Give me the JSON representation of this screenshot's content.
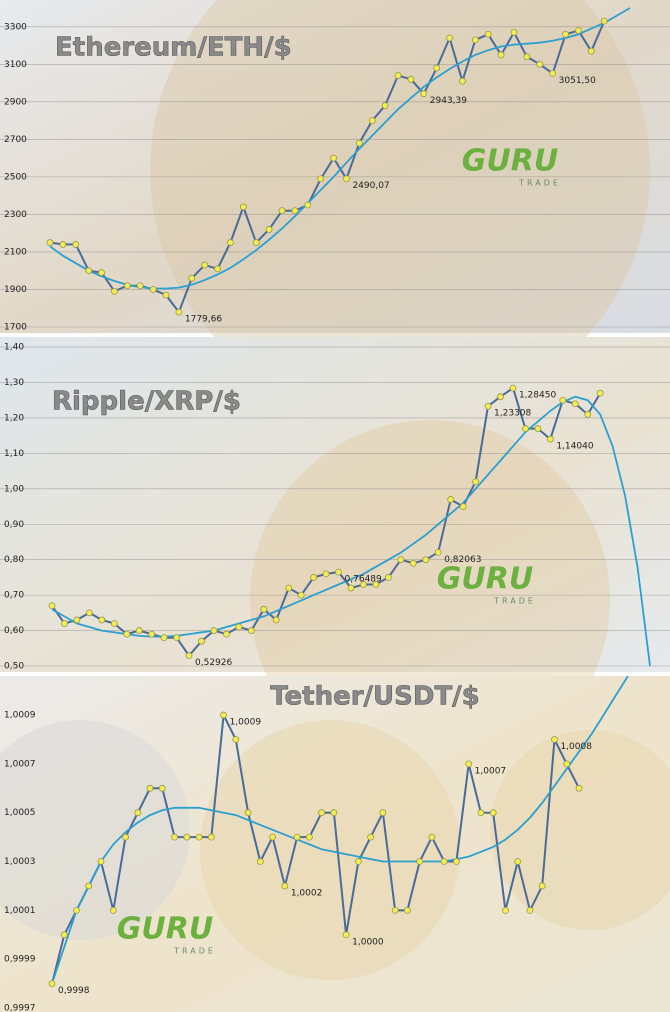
{
  "chart_data": [
    {
      "type": "line",
      "title": "Ethereum/ETH/$",
      "watermark": "GURU",
      "watermark_sub": "TRADE",
      "ylim": [
        1700,
        3400
      ],
      "yticks": [
        1700,
        1900,
        2100,
        2300,
        2500,
        2700,
        2900,
        3100,
        3300
      ],
      "grid": true,
      "series": [
        {
          "color": "#4a6a9a",
          "values": [
            2150,
            2140,
            2140,
            2000,
            1990,
            1890,
            1920,
            1920,
            1900,
            1870,
            1779.66,
            1960,
            2030,
            2010,
            2150,
            2340,
            2150,
            2220,
            2320,
            2320,
            2350,
            2490,
            2600,
            2490.07,
            2680,
            2800,
            2880,
            3040,
            3020,
            2943.39,
            3080,
            3240,
            3010,
            3230,
            3260,
            3150,
            3270,
            3140,
            3100,
            3051.5,
            3260,
            3280,
            3170,
            3330,
            null,
            null
          ],
          "value_labels": [
            null,
            null,
            null,
            null,
            null,
            null,
            null,
            null,
            null,
            null,
            "1779,66",
            null,
            null,
            null,
            null,
            null,
            null,
            null,
            null,
            null,
            null,
            null,
            null,
            "2490,07",
            null,
            null,
            null,
            null,
            null,
            "2943,39",
            null,
            null,
            null,
            null,
            null,
            null,
            null,
            null,
            null,
            "3051,50",
            null,
            null,
            null,
            null,
            null,
            null
          ]
        },
        {
          "color": "#2aa0d0",
          "values": [
            2130,
            2080,
            2040,
            2000,
            1970,
            1945,
            1925,
            1912,
            1905,
            1905,
            1910,
            1925,
            1950,
            1980,
            2015,
            2060,
            2110,
            2165,
            2225,
            2290,
            2360,
            2430,
            2500,
            2575,
            2650,
            2720,
            2790,
            2860,
            2920,
            2980,
            3030,
            3075,
            3115,
            3150,
            3175,
            3195,
            3205,
            3210,
            3215,
            3225,
            3240,
            3260,
            3290,
            3320,
            3360,
            3400
          ]
        }
      ]
    },
    {
      "type": "line",
      "title": "Ripple/XRP/$",
      "watermark": "GURU",
      "watermark_sub": "TRADE",
      "ylim": [
        0.5,
        1.42
      ],
      "yticks": [
        {
          "value": 0.5,
          "label": "0,50"
        },
        {
          "value": 0.6,
          "label": "0,60"
        },
        {
          "value": 0.7,
          "label": "0,70"
        },
        {
          "value": 0.8,
          "label": "0,80"
        },
        {
          "value": 0.9,
          "label": "0,90"
        },
        {
          "value": 1.0,
          "label": "1,00"
        },
        {
          "value": 1.1,
          "label": "1,10"
        },
        {
          "value": 1.2,
          "label": "1,20"
        },
        {
          "value": 1.3,
          "label": "1,30"
        },
        {
          "value": 1.4,
          "label": "1,40"
        }
      ],
      "grid": true,
      "series": [
        {
          "color": "#4a6a9a",
          "values": [
            0.67,
            0.62,
            0.63,
            0.65,
            0.63,
            0.62,
            0.59,
            0.6,
            0.59,
            0.58,
            0.58,
            0.52926,
            0.57,
            0.6,
            0.59,
            0.61,
            0.6,
            0.66,
            0.63,
            0.72,
            0.7,
            0.75,
            0.76,
            0.76489,
            0.72,
            0.73,
            0.73,
            0.75,
            0.8,
            0.79,
            0.8,
            0.82063,
            0.97,
            0.95,
            1.02,
            1.23308,
            1.26,
            1.2845,
            1.17,
            1.17,
            1.1404,
            1.25,
            1.24,
            1.21,
            1.27,
            null,
            null,
            null,
            null
          ],
          "value_labels": [
            null,
            null,
            null,
            null,
            null,
            null,
            null,
            null,
            null,
            null,
            null,
            "0,52926",
            null,
            null,
            null,
            null,
            null,
            null,
            null,
            null,
            null,
            null,
            null,
            "0,76489",
            null,
            null,
            null,
            null,
            null,
            null,
            null,
            "0,82063",
            null,
            null,
            null,
            "1,23308",
            null,
            "1,28450",
            null,
            null,
            "1,14040",
            null,
            null,
            null,
            null,
            null,
            null,
            null,
            null
          ]
        },
        {
          "color": "#2aa0d0",
          "values": [
            0.66,
            0.64,
            0.62,
            0.61,
            0.6,
            0.595,
            0.59,
            0.585,
            0.583,
            0.583,
            0.585,
            0.59,
            0.595,
            0.6,
            0.61,
            0.62,
            0.63,
            0.64,
            0.655,
            0.67,
            0.685,
            0.7,
            0.715,
            0.73,
            0.745,
            0.76,
            0.78,
            0.8,
            0.82,
            0.845,
            0.87,
            0.9,
            0.93,
            0.96,
            1.0,
            1.04,
            1.08,
            1.12,
            1.16,
            1.19,
            1.22,
            1.245,
            1.26,
            1.25,
            1.21,
            1.12,
            0.98,
            0.78,
            0.5
          ]
        }
      ]
    },
    {
      "type": "line",
      "title": "Tether/USDT/$",
      "watermark": "GURU",
      "watermark_sub": "TRADE",
      "ylim": [
        0.9997,
        1.00106
      ],
      "yticks": [
        {
          "value": 0.9997,
          "label": "0,9997"
        },
        {
          "value": 0.9999,
          "label": "0,9999"
        },
        {
          "value": 1.0001,
          "label": "1,0001"
        },
        {
          "value": 1.0003,
          "label": "1,0003"
        },
        {
          "value": 1.0005,
          "label": "1,0005"
        },
        {
          "value": 1.0007,
          "label": "1,0007"
        },
        {
          "value": 1.0009,
          "label": "1,0009"
        }
      ],
      "grid": false,
      "series": [
        {
          "color": "#4a6a9a",
          "values": [
            0.9998,
            1.0,
            1.0001,
            1.0002,
            1.0003,
            1.0001,
            1.0004,
            1.0005,
            1.0006,
            1.0006,
            1.0004,
            1.0004,
            1.0004,
            1.0004,
            1.0009,
            1.0008,
            1.0005,
            1.0003,
            1.0004,
            1.0002,
            1.0004,
            1.0004,
            1.0005,
            1.0005,
            1.0,
            1.0003,
            1.0004,
            1.0005,
            1.0001,
            1.0001,
            1.0003,
            1.0004,
            1.0003,
            1.0003,
            1.0007,
            1.0005,
            1.0005,
            1.0001,
            1.0003,
            1.0001,
            1.0002,
            1.0008,
            1.0007,
            1.0006,
            null,
            null,
            null,
            null
          ],
          "value_labels": [
            "0,9998",
            null,
            null,
            null,
            null,
            null,
            null,
            null,
            null,
            null,
            null,
            null,
            null,
            null,
            "1,0009",
            null,
            null,
            null,
            null,
            "1,0002",
            null,
            null,
            null,
            null,
            "1,0000",
            null,
            null,
            null,
            null,
            null,
            null,
            null,
            null,
            null,
            "1,0007",
            null,
            null,
            null,
            null,
            null,
            null,
            "1,0008",
            null,
            null,
            null,
            null,
            null,
            null
          ]
        },
        {
          "color": "#2aa0d0",
          "values": [
            0.9998,
            0.99995,
            1.0001,
            1.0002,
            1.0003,
            1.00037,
            1.00042,
            1.00046,
            1.00049,
            1.00051,
            1.00052,
            1.00052,
            1.00052,
            1.00051,
            1.0005,
            1.00049,
            1.00047,
            1.00045,
            1.00043,
            1.00041,
            1.00039,
            1.00037,
            1.00035,
            1.00034,
            1.00033,
            1.00032,
            1.00031,
            1.0003,
            1.0003,
            1.0003,
            1.0003,
            1.0003,
            1.0003,
            1.00031,
            1.00032,
            1.00034,
            1.00036,
            1.00039,
            1.00043,
            1.00048,
            1.00054,
            1.00061,
            1.00068,
            1.00075,
            1.00082,
            1.0009,
            1.00098,
            1.00106
          ]
        }
      ]
    }
  ]
}
